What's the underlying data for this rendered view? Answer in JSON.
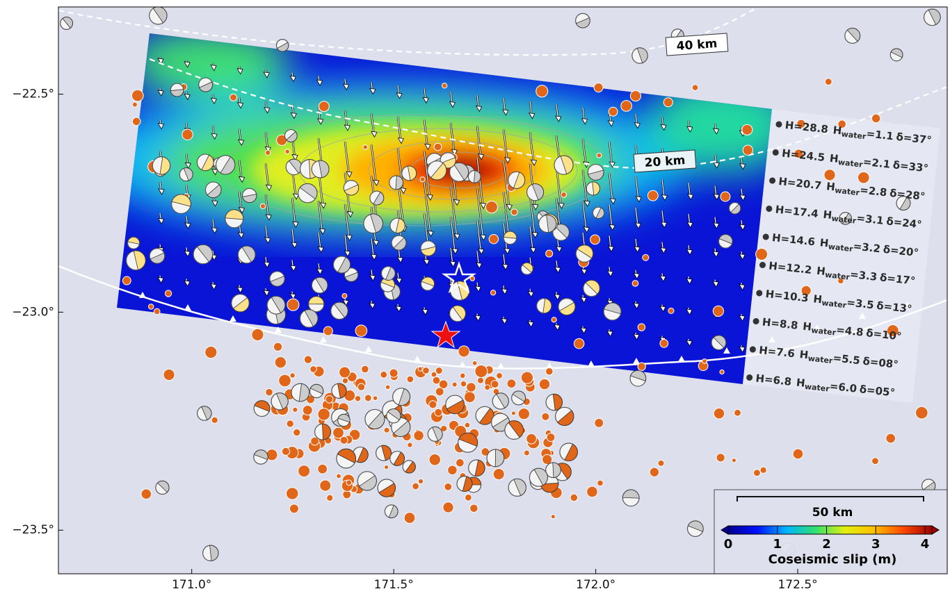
{
  "map": {
    "lon_lim": [
      170.67,
      172.87
    ],
    "lat_lim": [
      -23.6,
      -22.3
    ],
    "lon_ticks": [
      {
        "value": 171.0,
        "label": "171.0°"
      },
      {
        "value": 171.5,
        "label": "171.5°"
      },
      {
        "value": 172.0,
        "label": "172.0°"
      },
      {
        "value": 172.5,
        "label": "172.5°"
      }
    ],
    "lat_ticks": [
      {
        "value": -22.5,
        "label": "−22.5°"
      },
      {
        "value": -23.0,
        "label": "−23.0°"
      },
      {
        "value": -23.5,
        "label": "−23.5°"
      }
    ]
  },
  "depth_contours": [
    "40 km",
    "20 km"
  ],
  "fault_segments": {
    "water_symbol": "H",
    "water_subscript": "water",
    "rows": [
      {
        "depth": "H=28.8",
        "water": "=1.1",
        "dip": "δ=37°"
      },
      {
        "depth": "H=24.5",
        "water": "=2.1",
        "dip": "δ=33°"
      },
      {
        "depth": "H=20.7",
        "water": "=2.8",
        "dip": "δ=28°"
      },
      {
        "depth": "H=17.4",
        "water": "=3.1",
        "dip": "δ=24°"
      },
      {
        "depth": "H=14.6",
        "water": "=3.2",
        "dip": "δ=20°"
      },
      {
        "depth": "H=12.2",
        "water": "=3.3",
        "dip": "δ=17°"
      },
      {
        "depth": "H=10.3",
        "water": "=3.5",
        "dip": "δ=13°"
      },
      {
        "depth": "H=8.8",
        "water": "=4.8",
        "dip": "δ=10°"
      },
      {
        "depth": "H=7.6",
        "water": "=5.5",
        "dip": "δ=08°"
      },
      {
        "depth": "H=6.8",
        "water": "=6.0",
        "dip": "δ=05°"
      }
    ]
  },
  "scale_bar": "50 km",
  "colorbar": {
    "title": "Coseismic slip (m)",
    "lim": [
      0,
      4
    ],
    "ticks": [
      0,
      1,
      2,
      3,
      4
    ],
    "colors": [
      "#00008f",
      "#0010ff",
      "#00b4ff",
      "#30e070",
      "#e0f010",
      "#ffc000",
      "#ff4a00",
      "#a00000"
    ]
  }
}
